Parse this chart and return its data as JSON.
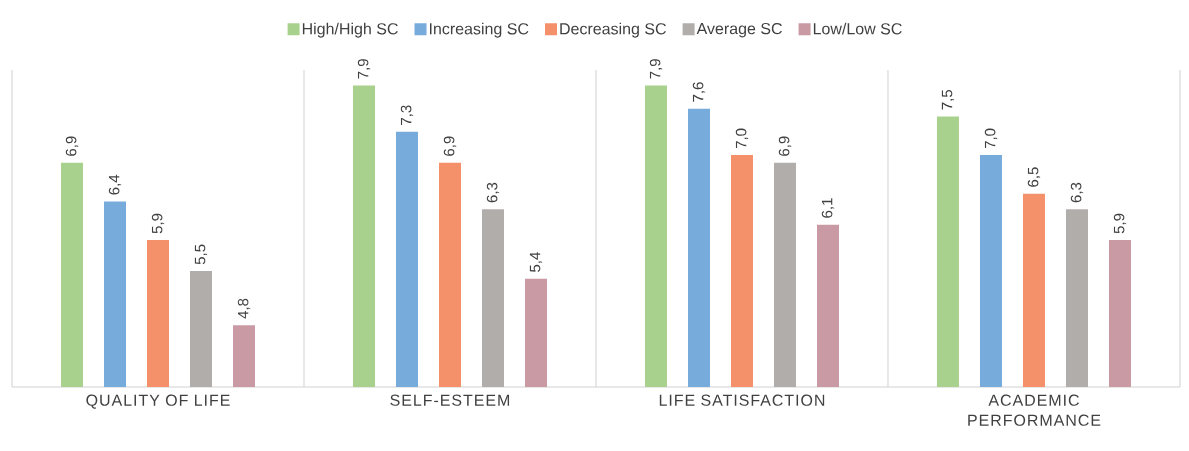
{
  "chart_data": {
    "type": "bar",
    "categories": [
      "QUALITY OF LIFE",
      "SELF-ESTEEM",
      "LIFE SATISFACTION",
      "ACADEMIC PERFORMANCE"
    ],
    "series": [
      {
        "name": "High/High SC",
        "color": "#a9d18e",
        "values": [
          6.9,
          7.9,
          7.9,
          7.5
        ],
        "value_labels": [
          "6,9",
          "7,9",
          "7,9",
          "7,5"
        ]
      },
      {
        "name": "Increasing SC",
        "color": "#77abdc",
        "values": [
          6.4,
          7.3,
          7.6,
          7.0
        ],
        "value_labels": [
          "6,4",
          "7,3",
          "7,6",
          "7,0"
        ]
      },
      {
        "name": "Decreasing SC",
        "color": "#f4916b",
        "values": [
          5.9,
          6.9,
          7.0,
          6.5
        ],
        "value_labels": [
          "5,9",
          "6,9",
          "7,0",
          "6,5"
        ]
      },
      {
        "name": "Average SC",
        "color": "#b0adab",
        "values": [
          5.5,
          6.3,
          6.9,
          6.3
        ],
        "value_labels": [
          "5,5",
          "6,3",
          "6,9",
          "6,3"
        ]
      },
      {
        "name": "Low/Low SC",
        "color": "#c99aa3",
        "values": [
          4.8,
          5.4,
          6.1,
          5.9
        ],
        "value_labels": [
          "4,8",
          "5,4",
          "6,1",
          "5,9"
        ]
      }
    ],
    "ylim": [
      4,
      8.1
    ],
    "tick_labels": "x",
    "grid": "x",
    "legend": "top"
  }
}
